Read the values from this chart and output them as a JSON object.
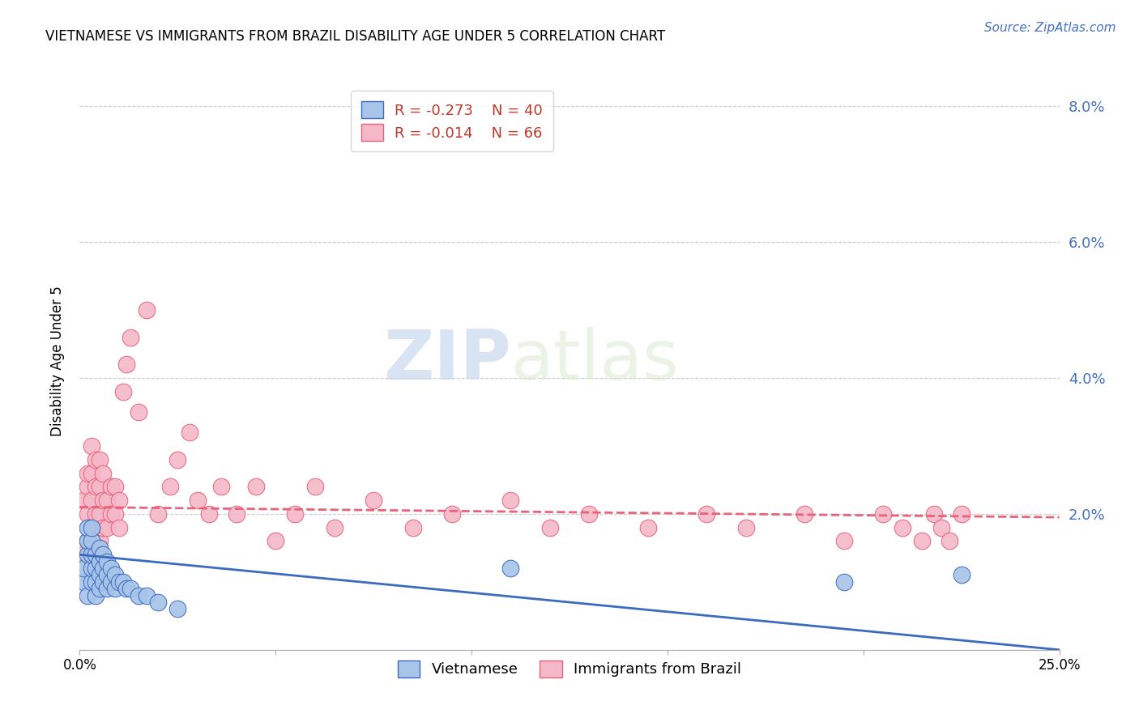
{
  "title": "VIETNAMESE VS IMMIGRANTS FROM BRAZIL DISABILITY AGE UNDER 5 CORRELATION CHART",
  "source": "Source: ZipAtlas.com",
  "ylabel": "Disability Age Under 5",
  "x_min": 0.0,
  "x_max": 0.25,
  "y_min": 0.0,
  "y_max": 0.085,
  "y_ticks": [
    0.0,
    0.02,
    0.04,
    0.06,
    0.08
  ],
  "y_tick_labels": [
    "",
    "2.0%",
    "4.0%",
    "6.0%",
    "8.0%"
  ],
  "x_ticks": [
    0.0,
    0.05,
    0.1,
    0.15,
    0.2,
    0.25
  ],
  "x_tick_labels": [
    "0.0%",
    "",
    "",
    "",
    "",
    "25.0%"
  ],
  "color_vietnamese": "#a8c4e8",
  "color_brazil": "#f5b8c8",
  "trend_color_vietnamese": "#3a6bbf",
  "trend_color_brazil": "#e8637a",
  "watermark_zip": "ZIP",
  "watermark_atlas": "atlas",
  "viet_trend_start_y": 0.014,
  "viet_trend_end_y": 0.0,
  "braz_trend_start_y": 0.021,
  "braz_trend_end_y": 0.0195,
  "vietnamese_x": [
    0.001,
    0.001,
    0.002,
    0.002,
    0.002,
    0.002,
    0.003,
    0.003,
    0.003,
    0.003,
    0.003,
    0.004,
    0.004,
    0.004,
    0.004,
    0.005,
    0.005,
    0.005,
    0.005,
    0.006,
    0.006,
    0.006,
    0.007,
    0.007,
    0.007,
    0.008,
    0.008,
    0.009,
    0.009,
    0.01,
    0.011,
    0.012,
    0.013,
    0.015,
    0.017,
    0.02,
    0.025,
    0.11,
    0.195,
    0.225
  ],
  "vietnamese_y": [
    0.01,
    0.012,
    0.008,
    0.014,
    0.016,
    0.018,
    0.01,
    0.012,
    0.014,
    0.016,
    0.018,
    0.008,
    0.01,
    0.012,
    0.014,
    0.009,
    0.011,
    0.013,
    0.015,
    0.01,
    0.012,
    0.014,
    0.009,
    0.011,
    0.013,
    0.01,
    0.012,
    0.009,
    0.011,
    0.01,
    0.01,
    0.009,
    0.009,
    0.008,
    0.008,
    0.007,
    0.006,
    0.012,
    0.01,
    0.011
  ],
  "brazil_x": [
    0.001,
    0.001,
    0.002,
    0.002,
    0.002,
    0.002,
    0.003,
    0.003,
    0.003,
    0.003,
    0.003,
    0.004,
    0.004,
    0.004,
    0.004,
    0.005,
    0.005,
    0.005,
    0.005,
    0.006,
    0.006,
    0.006,
    0.007,
    0.007,
    0.008,
    0.008,
    0.009,
    0.009,
    0.01,
    0.01,
    0.011,
    0.012,
    0.013,
    0.015,
    0.017,
    0.02,
    0.023,
    0.025,
    0.028,
    0.03,
    0.033,
    0.036,
    0.04,
    0.045,
    0.05,
    0.055,
    0.06,
    0.065,
    0.075,
    0.085,
    0.095,
    0.11,
    0.12,
    0.13,
    0.145,
    0.16,
    0.17,
    0.185,
    0.195,
    0.205,
    0.21,
    0.215,
    0.218,
    0.22,
    0.222,
    0.225
  ],
  "brazil_y": [
    0.014,
    0.022,
    0.016,
    0.02,
    0.024,
    0.026,
    0.014,
    0.018,
    0.022,
    0.026,
    0.03,
    0.016,
    0.02,
    0.024,
    0.028,
    0.016,
    0.02,
    0.024,
    0.028,
    0.018,
    0.022,
    0.026,
    0.018,
    0.022,
    0.02,
    0.024,
    0.02,
    0.024,
    0.018,
    0.022,
    0.038,
    0.042,
    0.046,
    0.035,
    0.05,
    0.02,
    0.024,
    0.028,
    0.032,
    0.022,
    0.02,
    0.024,
    0.02,
    0.024,
    0.016,
    0.02,
    0.024,
    0.018,
    0.022,
    0.018,
    0.02,
    0.022,
    0.018,
    0.02,
    0.018,
    0.02,
    0.018,
    0.02,
    0.016,
    0.02,
    0.018,
    0.016,
    0.02,
    0.018,
    0.016,
    0.02
  ]
}
